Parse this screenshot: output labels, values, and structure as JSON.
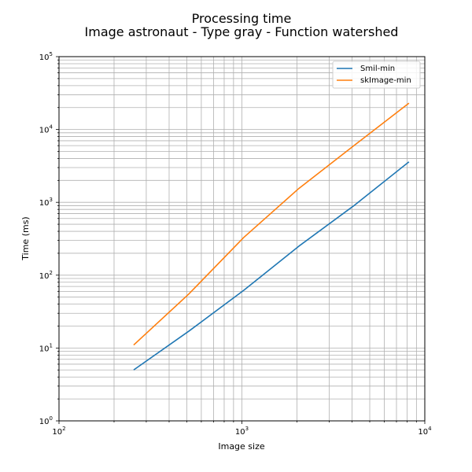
{
  "chart_data": {
    "type": "line",
    "title": "Processing time",
    "subtitle": "Image astronaut - Type gray - Function watershed",
    "xlabel": "Image size",
    "ylabel": "Time (ms)",
    "xscale": "log",
    "yscale": "log",
    "xlim": [
      100,
      10000
    ],
    "ylim": [
      1,
      100000
    ],
    "xticks": [
      {
        "value": 100,
        "base": "10",
        "exp": "2"
      },
      {
        "value": 1000,
        "base": "10",
        "exp": "3"
      },
      {
        "value": 10000,
        "base": "10",
        "exp": "4"
      }
    ],
    "yticks": [
      {
        "value": 1,
        "base": "10",
        "exp": "0"
      },
      {
        "value": 10,
        "base": "10",
        "exp": "1"
      },
      {
        "value": 100,
        "base": "10",
        "exp": "2"
      },
      {
        "value": 1000,
        "base": "10",
        "exp": "3"
      },
      {
        "value": 10000,
        "base": "10",
        "exp": "4"
      },
      {
        "value": 100000,
        "base": "10",
        "exp": "5"
      }
    ],
    "grid": true,
    "legend_position": "top-right",
    "series": [
      {
        "name": "Smil-min",
        "color": "#1f77b4",
        "x": [
          256,
          512,
          1024,
          2048,
          4096,
          8192
        ],
        "y": [
          5,
          17,
          62,
          250,
          900,
          3600
        ]
      },
      {
        "name": "skImage-min",
        "color": "#ff7f0e",
        "x": [
          256,
          512,
          1024,
          2048,
          4096,
          8192
        ],
        "y": [
          11,
          55,
          330,
          1550,
          6000,
          23000
        ]
      }
    ]
  }
}
